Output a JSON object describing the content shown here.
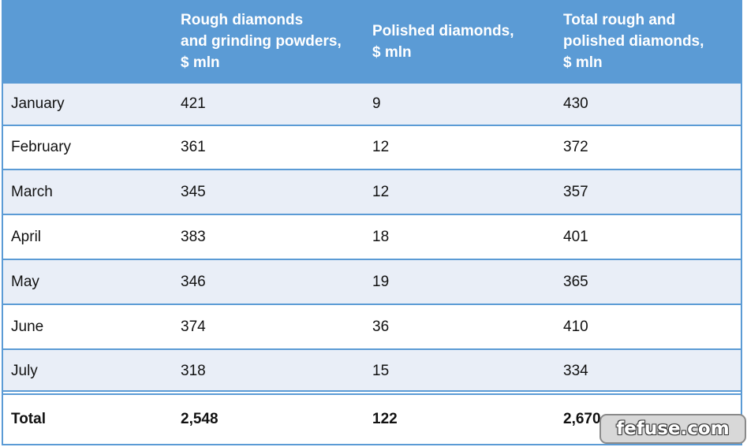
{
  "table": {
    "headers": [
      "",
      "Rough diamonds\nand grinding powders,\n$ mln",
      "Polished diamonds,\n$ mln",
      "Total rough and\npolished diamonds,\n$ mln"
    ],
    "rows": [
      [
        "January",
        "421",
        "9",
        "430"
      ],
      [
        "February",
        "361",
        "12",
        "372"
      ],
      [
        "March",
        "345",
        "12",
        "357"
      ],
      [
        "April",
        "383",
        "18",
        "401"
      ],
      [
        "May",
        "346",
        "19",
        "365"
      ],
      [
        "June",
        "374",
        "36",
        "410"
      ],
      [
        "July",
        "318",
        "15",
        "334"
      ]
    ],
    "total": [
      "Total",
      "2,548",
      "122",
      "2,670"
    ],
    "header_color": "#5b9bd5",
    "band_color": "#e9eef7"
  },
  "watermark": {
    "text": "fefuse.com"
  }
}
